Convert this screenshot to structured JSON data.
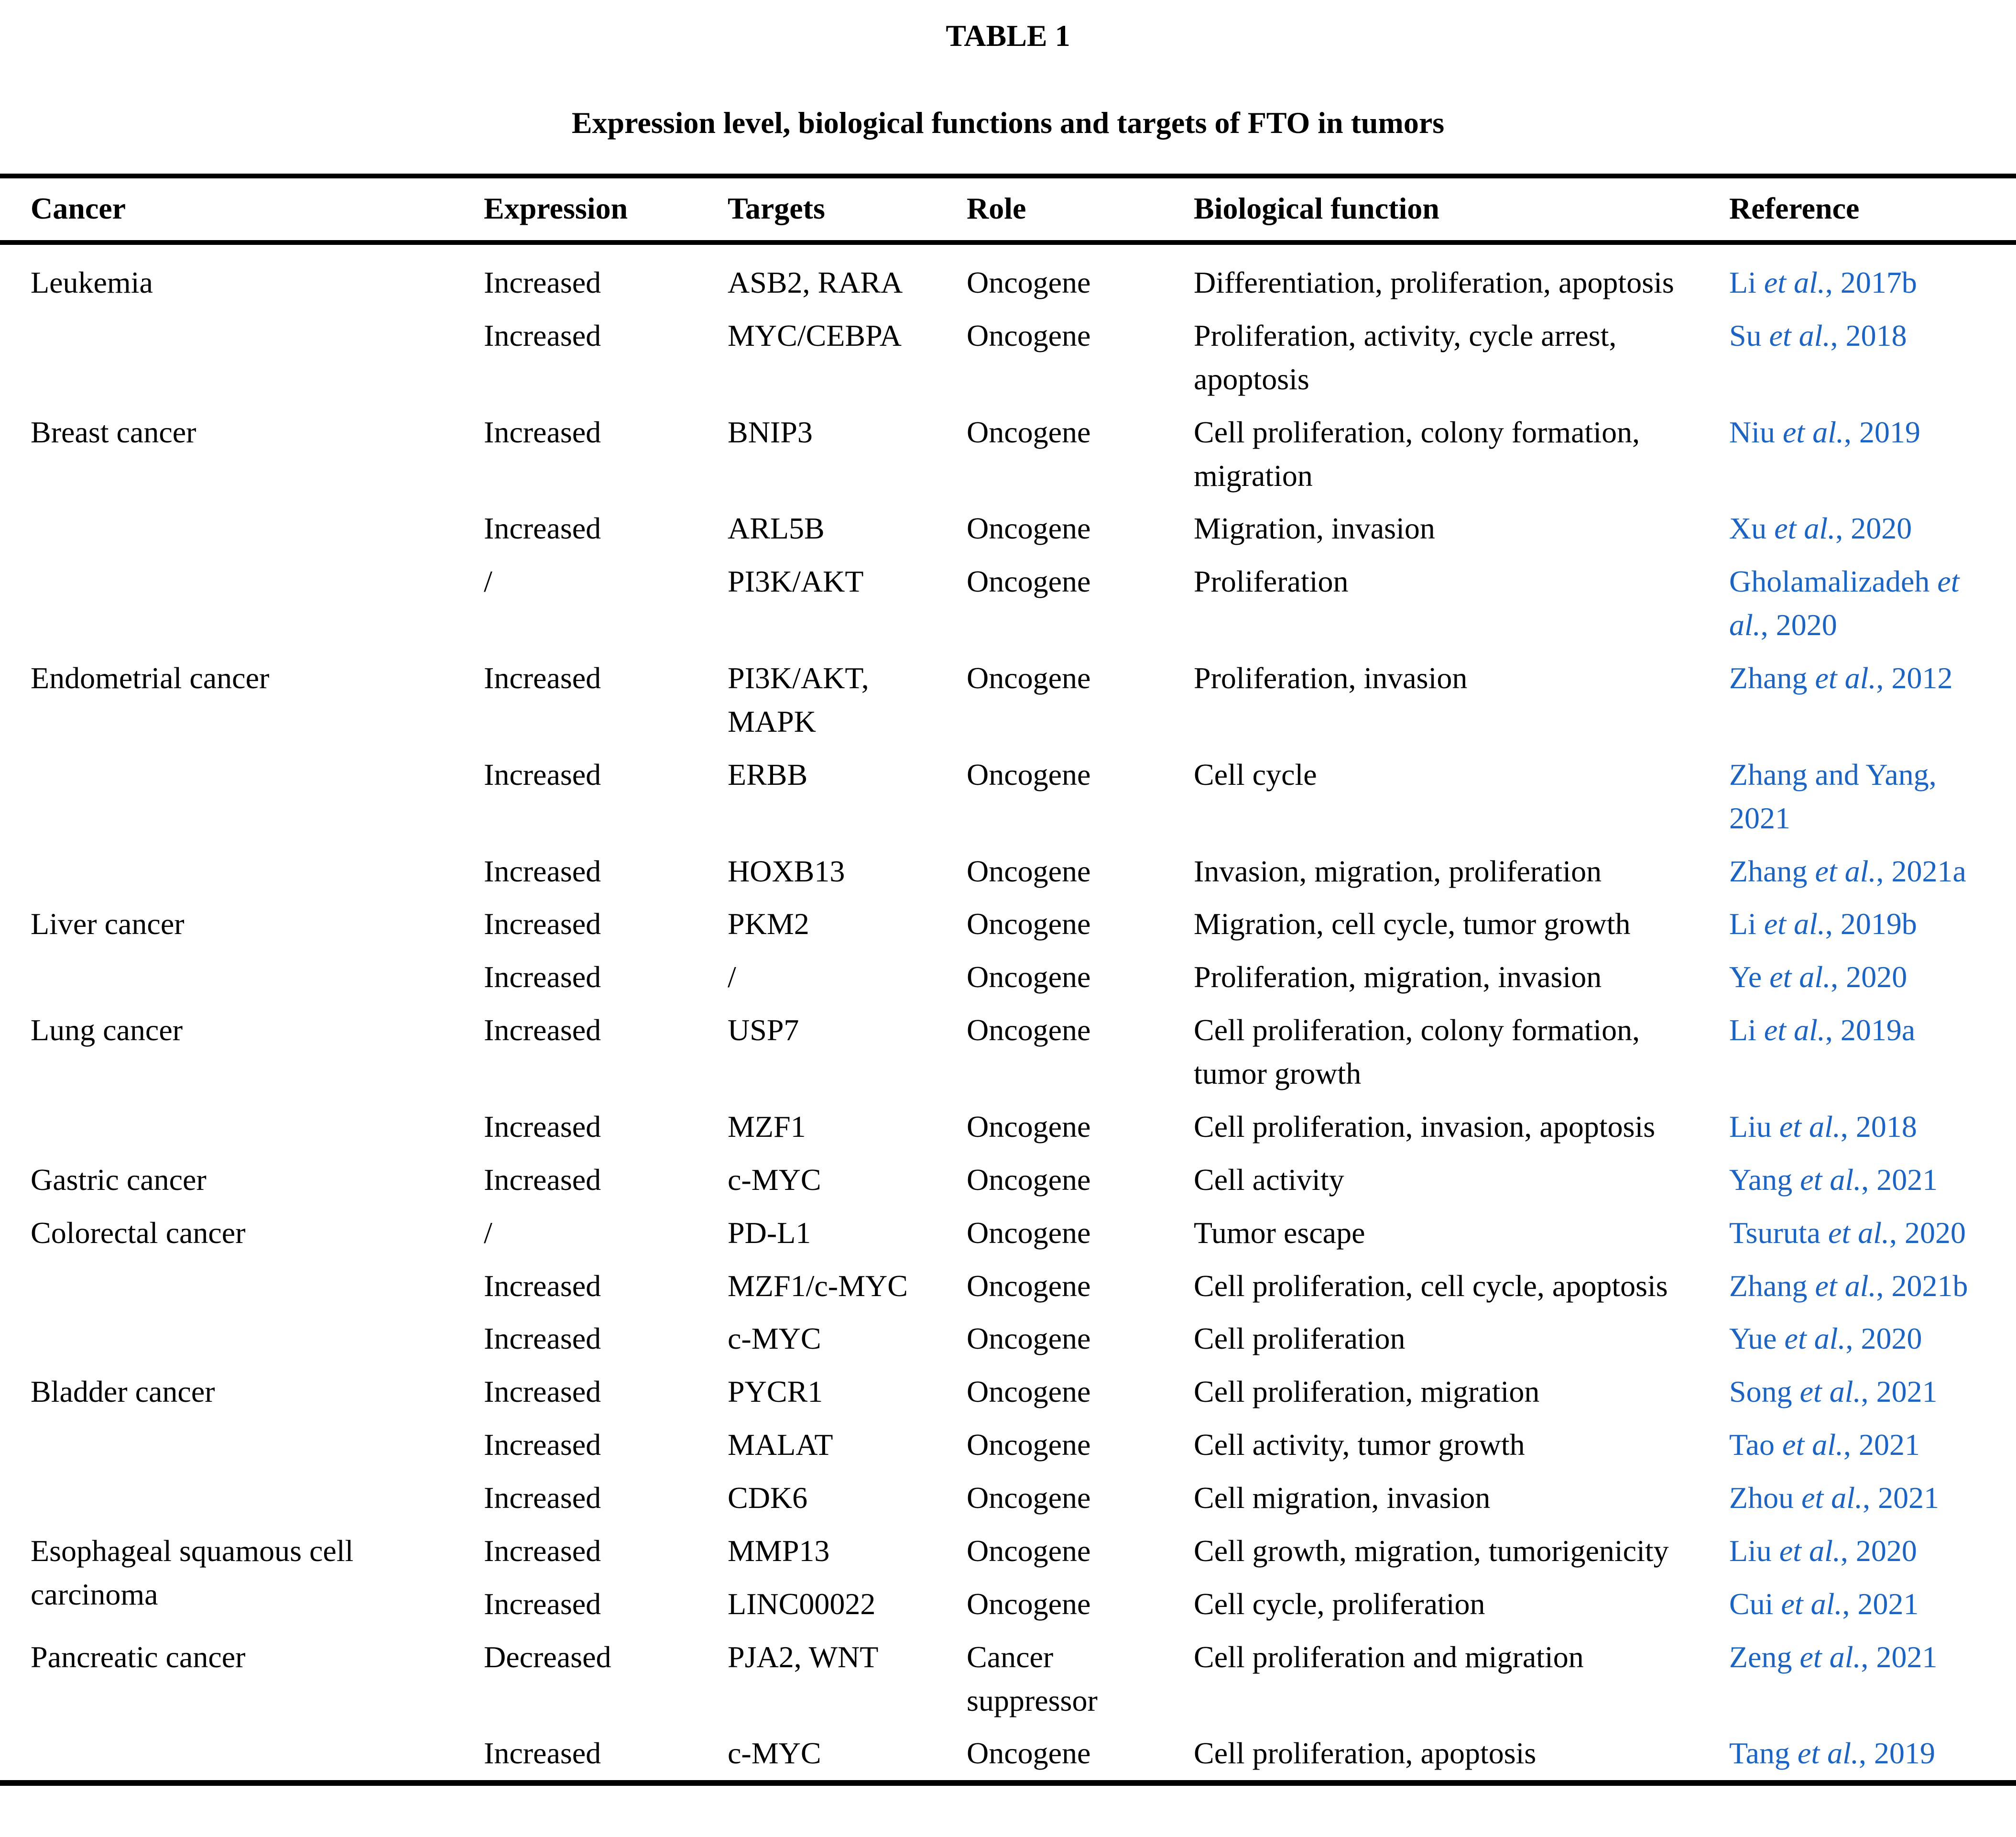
{
  "page": {
    "label": "TABLE 1",
    "caption": "Expression level, biological functions and targets of FTO in tumors"
  },
  "columns": [
    "Cancer",
    "Expression",
    "Targets",
    "Role",
    "Biological function",
    "Reference"
  ],
  "colors": {
    "background": "#ffffff",
    "text": "#000000",
    "rule": "#000000",
    "link_blue": "#1c64c4"
  },
  "rows": [
    {
      "cancer": "Leukemia",
      "expression": "Increased",
      "targets": "ASB2, RARA",
      "role": "Oncogene",
      "function": "Differentiation, proliferation, apoptosis",
      "reference": [
        {
          "t": "Li ",
          "i": false
        },
        {
          "t": "et al.",
          "i": true
        },
        {
          "t": ", 2017b",
          "i": false
        }
      ]
    },
    {
      "cancer": "",
      "expression": "Increased",
      "targets": "MYC/CEBPA",
      "role": "Oncogene",
      "function": "Proliferation, activity, cycle arrest, apoptosis",
      "reference": [
        {
          "t": "Su ",
          "i": false
        },
        {
          "t": "et al.",
          "i": true
        },
        {
          "t": ", 2018",
          "i": false
        }
      ]
    },
    {
      "cancer": "Breast cancer",
      "expression": "Increased",
      "targets": "BNIP3",
      "role": "Oncogene",
      "function": "Cell proliferation, colony formation, migration",
      "reference": [
        {
          "t": "Niu ",
          "i": false
        },
        {
          "t": "et al.",
          "i": true
        },
        {
          "t": ", 2019",
          "i": false
        }
      ]
    },
    {
      "cancer": "",
      "expression": "Increased",
      "targets": "ARL5B",
      "role": "Oncogene",
      "function": "Migration, invasion",
      "reference": [
        {
          "t": "Xu ",
          "i": false
        },
        {
          "t": "et al.",
          "i": true
        },
        {
          "t": ", 2020",
          "i": false
        }
      ]
    },
    {
      "cancer": "",
      "expression": "/",
      "targets": "PI3K/AKT",
      "role": "Oncogene",
      "function": "Proliferation",
      "reference": [
        {
          "t": "Gholamalizadeh ",
          "i": false
        },
        {
          "t": "et al.",
          "i": true
        },
        {
          "t": ", 2020",
          "i": false
        }
      ]
    },
    {
      "cancer": "Endometrial cancer",
      "expression": "Increased",
      "targets": "PI3K/AKT, MAPK",
      "role": "Oncogene",
      "function": "Proliferation, invasion",
      "reference": [
        {
          "t": "Zhang ",
          "i": false
        },
        {
          "t": "et al.",
          "i": true
        },
        {
          "t": ", 2012",
          "i": false
        }
      ]
    },
    {
      "cancer": "",
      "expression": "Increased",
      "targets": "ERBB",
      "role": "Oncogene",
      "function": "Cell cycle",
      "reference": [
        {
          "t": "Zhang and Yang, 2021",
          "i": false
        }
      ]
    },
    {
      "cancer": "",
      "expression": "Increased",
      "targets": "HOXB13",
      "role": "Oncogene",
      "function": "Invasion, migration, proliferation",
      "reference": [
        {
          "t": "Zhang ",
          "i": false
        },
        {
          "t": "et al.",
          "i": true
        },
        {
          "t": ", 2021a",
          "i": false
        }
      ]
    },
    {
      "cancer": "Liver cancer",
      "expression": "Increased",
      "targets": "PKM2",
      "role": "Oncogene",
      "function": "Migration, cell cycle, tumor growth",
      "reference": [
        {
          "t": "Li ",
          "i": false
        },
        {
          "t": "et al.",
          "i": true
        },
        {
          "t": ", 2019b",
          "i": false
        }
      ]
    },
    {
      "cancer": "",
      "expression": "Increased",
      "targets": "/",
      "role": "Oncogene",
      "function": "Proliferation, migration, invasion",
      "reference": [
        {
          "t": "Ye ",
          "i": false
        },
        {
          "t": "et al.",
          "i": true
        },
        {
          "t": ", 2020",
          "i": false
        }
      ]
    },
    {
      "cancer": "Lung cancer",
      "expression": "Increased",
      "targets": "USP7",
      "role": "Oncogene",
      "function": "Cell proliferation, colony formation, tumor growth",
      "reference": [
        {
          "t": "Li ",
          "i": false
        },
        {
          "t": "et al.",
          "i": true
        },
        {
          "t": ", 2019a",
          "i": false
        }
      ]
    },
    {
      "cancer": "",
      "expression": "Increased",
      "targets": "MZF1",
      "role": "Oncogene",
      "function": "Cell proliferation, invasion, apoptosis",
      "reference": [
        {
          "t": "Liu ",
          "i": false
        },
        {
          "t": "et al.",
          "i": true
        },
        {
          "t": ", 2018",
          "i": false
        }
      ]
    },
    {
      "cancer": "Gastric cancer",
      "expression": "Increased",
      "targets": "c-MYC",
      "role": "Oncogene",
      "function": "Cell activity",
      "reference": [
        {
          "t": "Yang ",
          "i": false
        },
        {
          "t": "et al.",
          "i": true
        },
        {
          "t": ", 2021",
          "i": false
        }
      ]
    },
    {
      "cancer": "Colorectal cancer",
      "expression": "/",
      "targets": "PD-L1",
      "role": "Oncogene",
      "function": "Tumor escape",
      "reference": [
        {
          "t": "Tsuruta ",
          "i": false
        },
        {
          "t": "et al.",
          "i": true
        },
        {
          "t": ", 2020",
          "i": false
        }
      ]
    },
    {
      "cancer": "",
      "expression": "Increased",
      "targets": "MZF1/c-MYC",
      "role": "Oncogene",
      "function": "Cell proliferation, cell cycle, apoptosis",
      "reference": [
        {
          "t": "Zhang ",
          "i": false
        },
        {
          "t": "et al.",
          "i": true
        },
        {
          "t": ", 2021b",
          "i": false
        }
      ]
    },
    {
      "cancer": "",
      "expression": "Increased",
      "targets": "c-MYC",
      "role": "Oncogene",
      "function": "Cell proliferation",
      "reference": [
        {
          "t": "Yue ",
          "i": false
        },
        {
          "t": "et al.",
          "i": true
        },
        {
          "t": ", 2020",
          "i": false
        }
      ]
    },
    {
      "cancer": "Bladder cancer",
      "expression": "Increased",
      "targets": "PYCR1",
      "role": "Oncogene",
      "function": "Cell proliferation, migration",
      "reference": [
        {
          "t": "Song ",
          "i": false
        },
        {
          "t": "et al.",
          "i": true
        },
        {
          "t": ", 2021",
          "i": false
        }
      ]
    },
    {
      "cancer": "",
      "expression": "Increased",
      "targets": "MALAT",
      "role": "Oncogene",
      "function": "Cell activity, tumor growth",
      "reference": [
        {
          "t": "Tao ",
          "i": false
        },
        {
          "t": "et al.",
          "i": true
        },
        {
          "t": ", 2021",
          "i": false
        }
      ]
    },
    {
      "cancer": "",
      "expression": "Increased",
      "targets": "CDK6",
      "role": "Oncogene",
      "function": "Cell migration, invasion",
      "reference": [
        {
          "t": "Zhou ",
          "i": false
        },
        {
          "t": "et al.",
          "i": true
        },
        {
          "t": ", 2021",
          "i": false
        }
      ]
    },
    {
      "cancer": "Esophageal squamous cell carcinoma",
      "rowspan": 2,
      "expression": "Increased",
      "targets": "MMP13",
      "role": "Oncogene",
      "function": "Cell growth, migration, tumorigenicity",
      "reference": [
        {
          "t": "Liu ",
          "i": false
        },
        {
          "t": "et al.",
          "i": true
        },
        {
          "t": ", 2020",
          "i": false
        }
      ]
    },
    {
      "cancer": null,
      "expression": "Increased",
      "targets": "LINC00022",
      "role": "Oncogene",
      "function": "Cell cycle, proliferation",
      "reference": [
        {
          "t": "Cui ",
          "i": false
        },
        {
          "t": "et al.",
          "i": true
        },
        {
          "t": ", 2021",
          "i": false
        }
      ]
    },
    {
      "cancer": "Pancreatic cancer",
      "expression": "Decreased",
      "targets": "PJA2, WNT",
      "role": "Cancer suppressor",
      "function": "Cell proliferation and migration",
      "reference": [
        {
          "t": "Zeng ",
          "i": false
        },
        {
          "t": "et al.",
          "i": true
        },
        {
          "t": ", 2021",
          "i": false
        }
      ]
    },
    {
      "cancer": "",
      "expression": "Increased",
      "targets": "c-MYC",
      "role": "Oncogene",
      "function": "Cell proliferation, apoptosis",
      "reference": [
        {
          "t": "Tang ",
          "i": false
        },
        {
          "t": "et al.",
          "i": true
        },
        {
          "t": ", 2019",
          "i": false
        }
      ]
    }
  ]
}
